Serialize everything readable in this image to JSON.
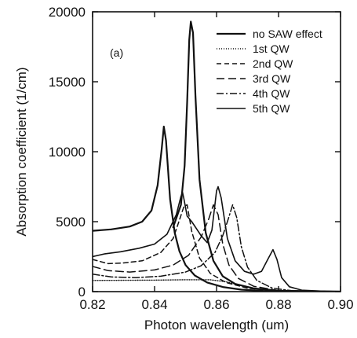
{
  "chart_data": {
    "type": "line",
    "panel_label": "(a)",
    "xlabel": "Photon wavelength (um)",
    "ylabel": "Absorption coefficient (1/cm)",
    "xlim": [
      0.82,
      0.9
    ],
    "ylim": [
      0,
      20000
    ],
    "xticks": [
      "0.82",
      "0.84",
      "0.86",
      "0.88",
      "0.90"
    ],
    "yticks": [
      "0",
      "5000",
      "10000",
      "15000",
      "20000"
    ],
    "legend_position": "top-right",
    "grid": false,
    "series": [
      {
        "name": "no SAW effect",
        "dash": "",
        "width": 2.2,
        "points": [
          [
            0.82,
            4350
          ],
          [
            0.826,
            4450
          ],
          [
            0.832,
            4650
          ],
          [
            0.836,
            5000
          ],
          [
            0.839,
            5800
          ],
          [
            0.841,
            7600
          ],
          [
            0.8423,
            10200
          ],
          [
            0.843,
            11800
          ],
          [
            0.8437,
            10800
          ],
          [
            0.845,
            6600
          ],
          [
            0.8465,
            4200
          ],
          [
            0.848,
            2900
          ],
          [
            0.85,
            1900
          ],
          [
            0.853,
            1150
          ],
          [
            0.857,
            650
          ],
          [
            0.862,
            330
          ],
          [
            0.868,
            140
          ],
          [
            0.875,
            50
          ],
          [
            0.885,
            10
          ],
          [
            0.9,
            0
          ]
        ]
      },
      {
        "name": "1st QW",
        "dash": "1,2",
        "width": 1.4,
        "points": [
          [
            0.82,
            800
          ],
          [
            0.84,
            820
          ],
          [
            0.85,
            850
          ],
          [
            0.858,
            850
          ],
          [
            0.863,
            700
          ],
          [
            0.868,
            450
          ],
          [
            0.873,
            210
          ],
          [
            0.878,
            70
          ],
          [
            0.885,
            15
          ],
          [
            0.9,
            0
          ]
        ]
      },
      {
        "name": "2nd QW",
        "dash": "6,4",
        "width": 1.5,
        "points": [
          [
            0.82,
            2300
          ],
          [
            0.825,
            2000
          ],
          [
            0.83,
            2050
          ],
          [
            0.836,
            2200
          ],
          [
            0.842,
            2800
          ],
          [
            0.846,
            3800
          ],
          [
            0.848,
            5100
          ],
          [
            0.8495,
            6100
          ],
          [
            0.8505,
            6200
          ],
          [
            0.852,
            4300
          ],
          [
            0.8545,
            2400
          ],
          [
            0.858,
            1300
          ],
          [
            0.863,
            650
          ],
          [
            0.87,
            250
          ],
          [
            0.878,
            60
          ],
          [
            0.9,
            0
          ]
        ]
      },
      {
        "name": "3rd QW",
        "dash": "10,5",
        "width": 1.5,
        "points": [
          [
            0.82,
            1800
          ],
          [
            0.825,
            1500
          ],
          [
            0.832,
            1400
          ],
          [
            0.84,
            1550
          ],
          [
            0.846,
            1900
          ],
          [
            0.851,
            2600
          ],
          [
            0.855,
            3900
          ],
          [
            0.8575,
            5200
          ],
          [
            0.859,
            6200
          ],
          [
            0.8605,
            5500
          ],
          [
            0.862,
            3400
          ],
          [
            0.864,
            1900
          ],
          [
            0.867,
            950
          ],
          [
            0.872,
            380
          ],
          [
            0.88,
            80
          ],
          [
            0.9,
            0
          ]
        ]
      },
      {
        "name": "4th QW",
        "dash": "9,3,2,3",
        "width": 1.5,
        "points": [
          [
            0.82,
            1250
          ],
          [
            0.826,
            1050
          ],
          [
            0.834,
            1000
          ],
          [
            0.842,
            1100
          ],
          [
            0.85,
            1400
          ],
          [
            0.855,
            1850
          ],
          [
            0.8595,
            2800
          ],
          [
            0.862,
            4000
          ],
          [
            0.8638,
            5200
          ],
          [
            0.8652,
            6200
          ],
          [
            0.8665,
            5300
          ],
          [
            0.868,
            3200
          ],
          [
            0.87,
            1750
          ],
          [
            0.873,
            800
          ],
          [
            0.878,
            250
          ],
          [
            0.885,
            50
          ],
          [
            0.9,
            0
          ]
        ]
      },
      {
        "name": "5th QW",
        "dash": "",
        "width": 1.6,
        "points": [
          [
            0.82,
            2500
          ],
          [
            0.824,
            2700
          ],
          [
            0.829,
            2850
          ],
          [
            0.835,
            3100
          ],
          [
            0.84,
            3400
          ],
          [
            0.844,
            4100
          ],
          [
            0.847,
            5500
          ],
          [
            0.8485,
            6800
          ],
          [
            0.849,
            7100
          ],
          [
            0.8495,
            6600
          ],
          [
            0.8505,
            5400
          ],
          [
            0.852,
            5000
          ],
          [
            0.855,
            4000
          ],
          [
            0.857,
            3500
          ],
          [
            0.8585,
            4400
          ],
          [
            0.86,
            7200
          ],
          [
            0.8605,
            7500
          ],
          [
            0.8615,
            6700
          ],
          [
            0.8635,
            3800
          ],
          [
            0.866,
            2200
          ],
          [
            0.869,
            1450
          ],
          [
            0.872,
            1250
          ],
          [
            0.8745,
            1450
          ],
          [
            0.8765,
            2300
          ],
          [
            0.8782,
            3000
          ],
          [
            0.8795,
            2300
          ],
          [
            0.881,
            1000
          ],
          [
            0.8835,
            350
          ],
          [
            0.8875,
            100
          ],
          [
            0.895,
            20
          ],
          [
            0.9,
            0
          ]
        ]
      },
      {
        "name": "",
        "dash": "",
        "width": 2.2,
        "points": [
          [
            0.846,
            4600
          ],
          [
            0.8485,
            6200
          ],
          [
            0.8497,
            9000
          ],
          [
            0.8505,
            13500
          ],
          [
            0.8512,
            18000
          ],
          [
            0.8517,
            19300
          ],
          [
            0.8524,
            18500
          ],
          [
            0.8532,
            14000
          ],
          [
            0.8545,
            8000
          ],
          [
            0.8565,
            4200
          ],
          [
            0.859,
            2200
          ],
          [
            0.862,
            1100
          ],
          [
            0.866,
            550
          ],
          [
            0.872,
            230
          ],
          [
            0.88,
            60
          ],
          [
            0.9,
            0
          ]
        ]
      }
    ]
  }
}
